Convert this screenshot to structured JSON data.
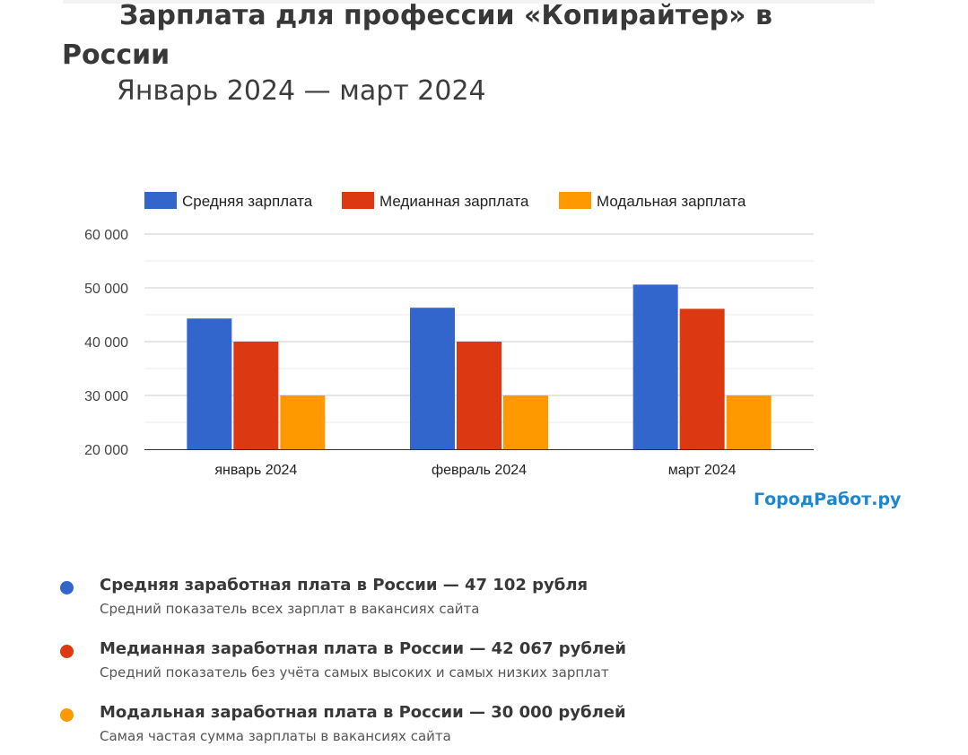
{
  "header": {
    "title": "Зарплата для профессии «Копирайтер» в России",
    "subtitle": "Январь 2024 — март 2024"
  },
  "chart_data": {
    "type": "bar",
    "categories": [
      "январь 2024",
      "февраль 2024",
      "март 2024"
    ],
    "series": [
      {
        "name": "Средняя зарплата",
        "values": [
          44300,
          46300,
          50600
        ],
        "color": "#3366cc"
      },
      {
        "name": "Медианная зарплата",
        "values": [
          40000,
          40000,
          46100
        ],
        "color": "#dc3912"
      },
      {
        "name": "Модальная зарплата",
        "values": [
          30000,
          30000,
          30000
        ],
        "color": "#ff9900"
      }
    ],
    "yticks": [
      "20 000",
      "30 000",
      "40 000",
      "50 000",
      "60 000"
    ],
    "ylim": [
      20000,
      60000
    ],
    "grid": true,
    "legend_position": "top"
  },
  "brand": {
    "label": "ГородРабот.ру",
    "color": "#1b87d1"
  },
  "stats": [
    {
      "title": "Средняя заработная плата в России — 47 102 рубля",
      "description": "Средний показатель всех зарплат в вакансиях сайта",
      "color": "#3366cc"
    },
    {
      "title": "Медианная заработная плата в России — 42 067 рублей",
      "description": "Средний показатель без учёта самых высоких и самых низких зарплат",
      "color": "#dc3912"
    },
    {
      "title": "Модальная заработная плата в России — 30 000 рублей",
      "description": "Самая частая сумма зарплаты в вакансиях сайта",
      "color": "#ff9900"
    }
  ]
}
